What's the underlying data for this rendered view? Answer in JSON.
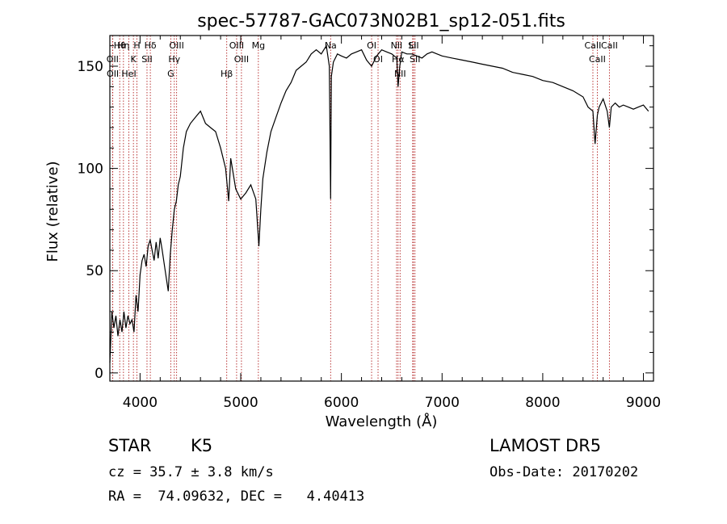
{
  "chart_data": {
    "type": "line",
    "title": "spec-57787-GAC073N02B1_sp12-051.fits",
    "xlabel": "Wavelength (Å)",
    "ylabel": "Flux (relative)",
    "xlim": [
      3700,
      9100
    ],
    "ylim": [
      -4,
      165
    ],
    "x_ticks": [
      4000,
      5000,
      6000,
      7000,
      8000,
      9000
    ],
    "x_tick_labels": [
      "4000",
      "5000",
      "6000",
      "7000",
      "8000",
      "9000"
    ],
    "y_ticks": [
      0,
      50,
      100,
      150
    ],
    "y_tick_labels": [
      "0",
      "50",
      "100",
      "150"
    ],
    "grid": false,
    "line_color": "#000000",
    "marker_line_color": "#b22222",
    "series": [
      {
        "x": [
          3700,
          3720,
          3740,
          3760,
          3780,
          3800,
          3820,
          3840,
          3860,
          3880,
          3900,
          3920,
          3940,
          3960,
          3980,
          4000,
          4020,
          4040,
          4060,
          4080,
          4100,
          4120,
          4140,
          4160,
          4180,
          4200,
          4220,
          4250,
          4280,
          4300,
          4320,
          4340,
          4360,
          4380,
          4400,
          4430,
          4460,
          4500,
          4550,
          4600,
          4650,
          4700,
          4750,
          4800,
          4850,
          4880,
          4900,
          4950,
          5000,
          5050,
          5100,
          5150,
          5180,
          5200,
          5220,
          5260,
          5300,
          5350,
          5400,
          5450,
          5500,
          5550,
          5600,
          5650,
          5700,
          5750,
          5800,
          5850,
          5880,
          5893,
          5900,
          5920,
          5960,
          6000,
          6050,
          6100,
          6150,
          6200,
          6250,
          6300,
          6350,
          6400,
          6450,
          6500,
          6550,
          6563,
          6580,
          6600,
          6650,
          6700,
          6750,
          6800,
          6850,
          6900,
          6950,
          7000,
          7100,
          7200,
          7300,
          7400,
          7500,
          7600,
          7700,
          7800,
          7900,
          8000,
          8100,
          8200,
          8300,
          8400,
          8450,
          8498,
          8520,
          8542,
          8560,
          8600,
          8640,
          8662,
          8680,
          8720,
          8760,
          8800,
          8850,
          8900,
          8950,
          9000,
          9050
        ],
        "y": [
          5,
          30,
          22,
          28,
          18,
          26,
          20,
          30,
          22,
          28,
          24,
          26,
          20,
          38,
          30,
          48,
          55,
          58,
          52,
          62,
          65,
          60,
          55,
          64,
          56,
          66,
          60,
          50,
          40,
          58,
          70,
          80,
          84,
          92,
          96,
          110,
          118,
          122,
          125,
          128,
          122,
          120,
          118,
          110,
          100,
          84,
          105,
          90,
          85,
          88,
          92,
          85,
          62,
          80,
          95,
          108,
          118,
          125,
          132,
          138,
          142,
          148,
          150,
          152,
          156,
          158,
          156,
          160,
          150,
          85,
          145,
          152,
          156,
          155,
          154,
          156,
          157,
          158,
          153,
          150,
          155,
          158,
          157,
          156,
          154,
          140,
          150,
          157,
          156,
          156,
          155,
          154,
          156,
          157,
          156,
          155,
          154,
          153,
          152,
          151,
          150,
          149,
          147,
          146,
          145,
          143,
          142,
          140,
          138,
          135,
          130,
          128,
          112,
          126,
          130,
          134,
          128,
          120,
          130,
          132,
          130,
          131,
          130,
          129,
          130,
          131,
          128
        ]
      }
    ],
    "spectral_lines": [
      {
        "label": "Hθ",
        "wavelength": 3798
      },
      {
        "label": "OII",
        "wavelength": 3727
      },
      {
        "label": "OII",
        "wavelength": 3729
      },
      {
        "label": "Hη",
        "wavelength": 3835
      },
      {
        "label": "K",
        "wavelength": 3934
      },
      {
        "label": "HeI",
        "wavelength": 3889
      },
      {
        "label": "H",
        "wavelength": 3969
      },
      {
        "label": "Hδ",
        "wavelength": 4102
      },
      {
        "label": "SII",
        "wavelength": 4069
      },
      {
        "label": "OIII",
        "wavelength": 4363
      },
      {
        "label": "Hγ",
        "wavelength": 4340
      },
      {
        "label": "G",
        "wavelength": 4305
      },
      {
        "label": "OIII",
        "wavelength": 4959
      },
      {
        "label": "OIII",
        "wavelength": 5007
      },
      {
        "label": "Hβ",
        "wavelength": 4861
      },
      {
        "label": "Mg",
        "wavelength": 5175
      },
      {
        "label": "Na",
        "wavelength": 5893
      },
      {
        "label": "OI",
        "wavelength": 6300
      },
      {
        "label": "OI",
        "wavelength": 6364
      },
      {
        "label": "NII",
        "wavelength": 6548
      },
      {
        "label": "Hα",
        "wavelength": 6563
      },
      {
        "label": "NII",
        "wavelength": 6583
      },
      {
        "label": "SII",
        "wavelength": 6716
      },
      {
        "label": "SII",
        "wavelength": 6731
      },
      {
        "label": "Li",
        "wavelength": 6708
      },
      {
        "label": "CaII",
        "wavelength": 8498
      },
      {
        "label": "CaII",
        "wavelength": 8542
      },
      {
        "label": "CaII",
        "wavelength": 8662
      }
    ]
  },
  "info": {
    "object_class": "STAR",
    "subclass": "K5",
    "survey": "LAMOST DR5",
    "cz_text": "cz = 35.7 ± 3.8 km/s",
    "obs_date_text": "Obs-Date: 20170202",
    "radec_text": "RA =  74.09632, DEC =   4.40413"
  }
}
